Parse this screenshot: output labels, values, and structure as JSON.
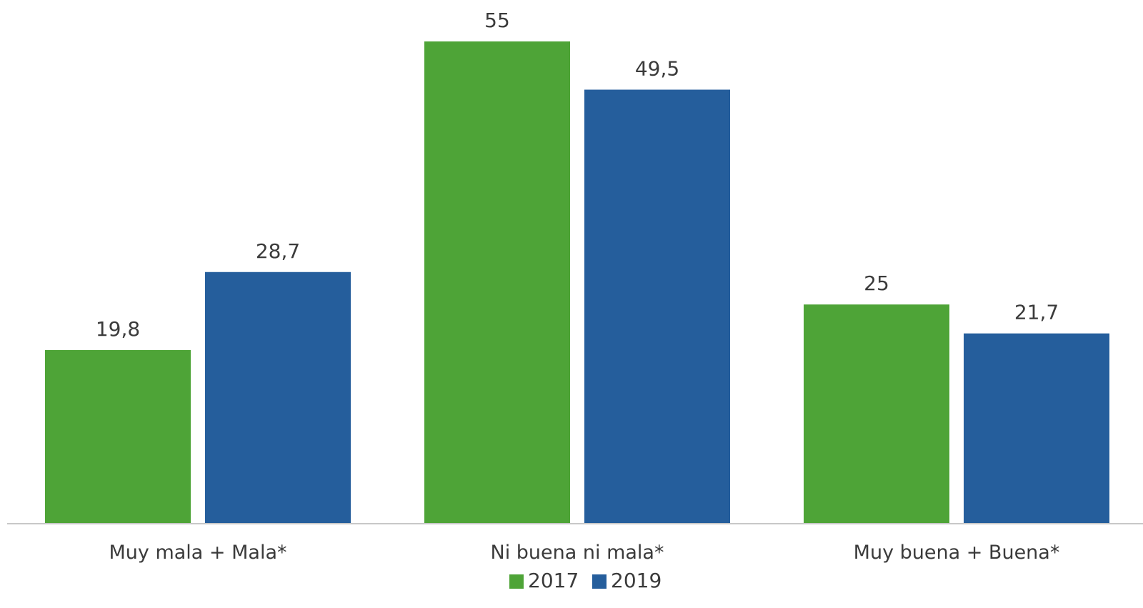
{
  "chart_data": {
    "type": "bar",
    "categories": [
      "Muy mala + Mala*",
      "Ni buena ni mala*",
      "Muy buena + Buena*"
    ],
    "series": [
      {
        "name": "2017",
        "values": [
          19.8,
          55,
          25
        ],
        "labels": [
          "19,8",
          "55",
          "25"
        ],
        "color": "#4ea437"
      },
      {
        "name": "2019",
        "values": [
          28.7,
          49.5,
          21.7
        ],
        "labels": [
          "28,7",
          "49,5",
          "21,7"
        ],
        "color": "#255e9c"
      }
    ],
    "title": "",
    "xlabel": "",
    "ylabel": "",
    "ylim": [
      0,
      60
    ],
    "grid": false,
    "legend": "bottom-center",
    "axis_color": "#c8c8c8"
  }
}
